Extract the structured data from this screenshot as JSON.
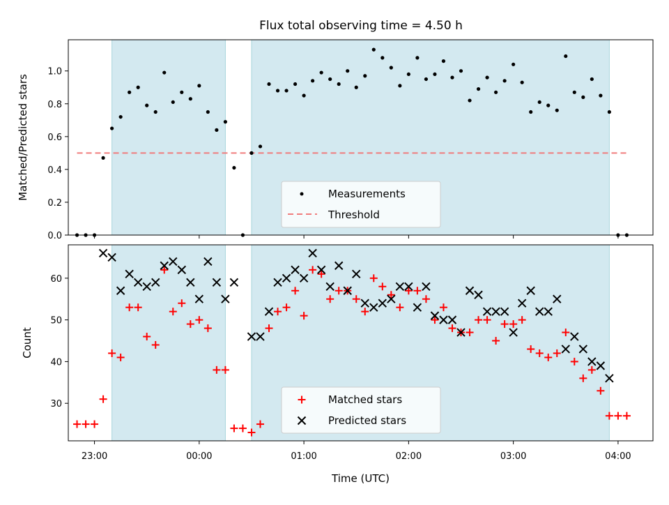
{
  "figure": {
    "title": "Flux total observing time = 4.50 h",
    "xlabel": "Time (UTC)"
  },
  "chart_data": [
    {
      "type": "scatter",
      "name": "top",
      "ylabel": "Matched/Predicted stars",
      "ylim": [
        0.0,
        1.19
      ],
      "yticks": [
        0.0,
        0.2,
        0.4,
        0.6,
        0.8,
        1.0
      ],
      "xlim": [
        "22:45",
        "04:20"
      ],
      "shaded_intervals": [
        [
          "23:10",
          "00:15"
        ],
        [
          "00:30",
          "03:55"
        ]
      ],
      "shade_color": "#d3e9f0",
      "threshold": 0.5,
      "threshold_range": [
        "22:50",
        "04:05"
      ],
      "threshold_color": "#f07c7c",
      "legend": {
        "position": "lower center",
        "entries": [
          "Measurements",
          "Threshold"
        ]
      },
      "measurements": {
        "x": [
          "22:50",
          "22:55",
          "23:00",
          "23:05",
          "23:10",
          "23:15",
          "23:20",
          "23:25",
          "23:30",
          "23:35",
          "23:40",
          "23:45",
          "23:50",
          "23:55",
          "00:00",
          "00:05",
          "00:10",
          "00:15",
          "00:20",
          "00:25",
          "00:30",
          "00:35",
          "00:40",
          "00:45",
          "00:50",
          "00:55",
          "01:00",
          "01:05",
          "01:10",
          "01:15",
          "01:20",
          "01:25",
          "01:30",
          "01:35",
          "01:40",
          "01:45",
          "01:50",
          "01:55",
          "02:00",
          "02:05",
          "02:10",
          "02:15",
          "02:20",
          "02:25",
          "02:30",
          "02:35",
          "02:40",
          "02:45",
          "02:50",
          "02:55",
          "03:00",
          "03:05",
          "03:10",
          "03:15",
          "03:20",
          "03:25",
          "03:30",
          "03:35",
          "03:40",
          "03:45",
          "03:50",
          "03:55",
          "04:00",
          "04:05"
        ],
        "y": [
          0.0,
          0.0,
          0.0,
          0.47,
          0.65,
          0.72,
          0.87,
          0.9,
          0.79,
          0.75,
          0.99,
          0.81,
          0.87,
          0.83,
          0.91,
          0.75,
          0.64,
          0.69,
          0.41,
          0.0,
          0.5,
          0.54,
          0.92,
          0.88,
          0.88,
          0.92,
          0.85,
          0.94,
          0.99,
          0.95,
          0.92,
          1.0,
          0.9,
          0.97,
          1.13,
          1.08,
          1.02,
          0.91,
          0.98,
          1.08,
          0.95,
          0.98,
          1.06,
          0.96,
          1.0,
          0.82,
          0.89,
          0.96,
          0.87,
          0.94,
          1.04,
          0.93,
          0.75,
          0.81,
          0.79,
          0.76,
          1.09,
          0.87,
          0.84,
          0.95,
          0.85,
          0.75,
          0.0,
          0.0
        ]
      }
    },
    {
      "type": "scatter",
      "name": "bottom",
      "ylabel": "Count",
      "ylim": [
        21,
        68
      ],
      "yticks": [
        30,
        40,
        50,
        60
      ],
      "xlim": [
        "22:45",
        "04:20"
      ],
      "xticks": [
        "23:00",
        "00:00",
        "01:00",
        "02:00",
        "03:00",
        "04:00"
      ],
      "shaded_intervals": [
        [
          "23:10",
          "00:15"
        ],
        [
          "00:30",
          "03:55"
        ]
      ],
      "legend": {
        "position": "lower center",
        "entries": [
          "Matched stars",
          "Predicted stars"
        ]
      },
      "series": [
        {
          "name": "Matched stars",
          "marker": "+",
          "color": "#ff0000",
          "x": [
            "22:50",
            "22:55",
            "23:00",
            "23:05",
            "23:10",
            "23:15",
            "23:20",
            "23:25",
            "23:30",
            "23:35",
            "23:40",
            "23:45",
            "23:50",
            "23:55",
            "00:00",
            "00:05",
            "00:10",
            "00:15",
            "00:20",
            "00:25",
            "00:30",
            "00:35",
            "00:40",
            "00:45",
            "00:50",
            "00:55",
            "01:00",
            "01:05",
            "01:10",
            "01:15",
            "01:20",
            "01:25",
            "01:30",
            "01:35",
            "01:40",
            "01:45",
            "01:50",
            "01:55",
            "02:00",
            "02:05",
            "02:10",
            "02:15",
            "02:20",
            "02:25",
            "02:30",
            "02:35",
            "02:40",
            "02:45",
            "02:50",
            "02:55",
            "03:00",
            "03:05",
            "03:10",
            "03:15",
            "03:20",
            "03:25",
            "03:30",
            "03:35",
            "03:40",
            "03:45",
            "03:50",
            "03:55",
            "04:00",
            "04:05"
          ],
          "y": [
            25,
            25,
            25,
            31,
            42,
            41,
            53,
            53,
            46,
            44,
            62,
            52,
            54,
            49,
            50,
            48,
            38,
            38,
            24,
            24,
            23,
            25,
            48,
            52,
            53,
            57,
            51,
            62,
            61,
            55,
            57,
            57,
            55,
            52,
            60,
            58,
            56,
            53,
            57,
            57,
            55,
            50,
            53,
            48,
            47,
            47,
            50,
            50,
            45,
            49,
            49,
            50,
            43,
            42,
            41,
            42,
            47,
            40,
            36,
            38,
            33,
            27,
            27,
            27
          ]
        },
        {
          "name": "Predicted stars",
          "marker": "x",
          "color": "#000000",
          "x": [
            "23:05",
            "23:10",
            "23:15",
            "23:20",
            "23:25",
            "23:30",
            "23:35",
            "23:40",
            "23:45",
            "23:50",
            "23:55",
            "00:00",
            "00:05",
            "00:10",
            "00:15",
            "00:20",
            "00:30",
            "00:35",
            "00:40",
            "00:45",
            "00:50",
            "00:55",
            "01:00",
            "01:05",
            "01:10",
            "01:15",
            "01:20",
            "01:25",
            "01:30",
            "01:35",
            "01:40",
            "01:45",
            "01:50",
            "01:55",
            "02:00",
            "02:05",
            "02:10",
            "02:15",
            "02:20",
            "02:25",
            "02:30",
            "02:35",
            "02:40",
            "02:45",
            "02:50",
            "02:55",
            "03:00",
            "03:05",
            "03:10",
            "03:15",
            "03:20",
            "03:25",
            "03:30",
            "03:35",
            "03:40",
            "03:45",
            "03:50",
            "03:55"
          ],
          "y": [
            66,
            65,
            57,
            61,
            59,
            58,
            59,
            63,
            64,
            62,
            59,
            55,
            64,
            59,
            55,
            59,
            46,
            46,
            52,
            59,
            60,
            62,
            60,
            66,
            62,
            58,
            63,
            57,
            61,
            54,
            53,
            54,
            55,
            58,
            58,
            53,
            58,
            51,
            50,
            50,
            47,
            57,
            56,
            52,
            52,
            52,
            47,
            54,
            57,
            52,
            52,
            55,
            43,
            46,
            43,
            40,
            39,
            36
          ]
        }
      ]
    }
  ]
}
